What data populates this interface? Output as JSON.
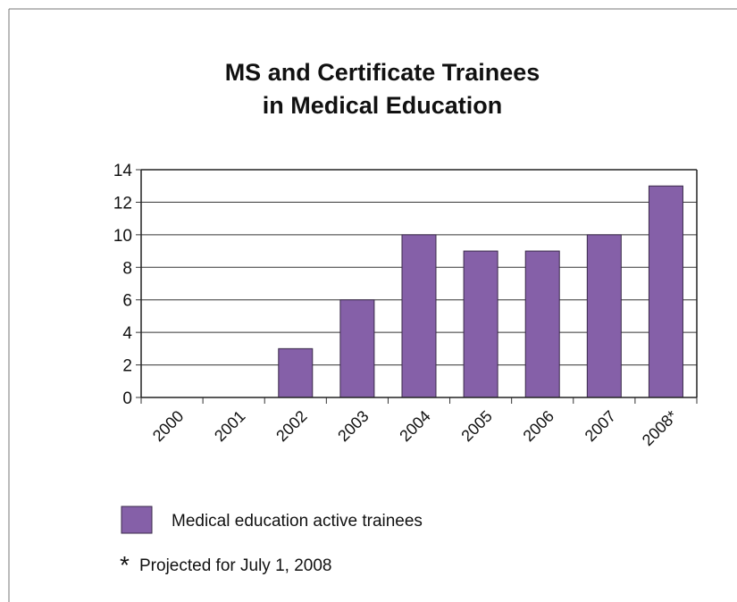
{
  "chart_data": {
    "type": "bar",
    "title": [
      "MS and Certificate Trainees",
      "in Medical Education"
    ],
    "categories": [
      "2000",
      "2001",
      "2002",
      "2003",
      "2004",
      "2005",
      "2006",
      "2007",
      "2008*"
    ],
    "series": [
      {
        "name": "Medical education active trainees",
        "color": "#8560a8",
        "values": [
          0,
          0,
          3,
          6,
          10,
          9,
          9,
          10,
          13
        ]
      }
    ],
    "ylim": [
      0,
      14
    ],
    "yticks": [
      0,
      2,
      4,
      6,
      8,
      10,
      12,
      14
    ],
    "grid": true
  },
  "footnote": {
    "marker": "*",
    "text": "Projected for July 1, 2008"
  }
}
